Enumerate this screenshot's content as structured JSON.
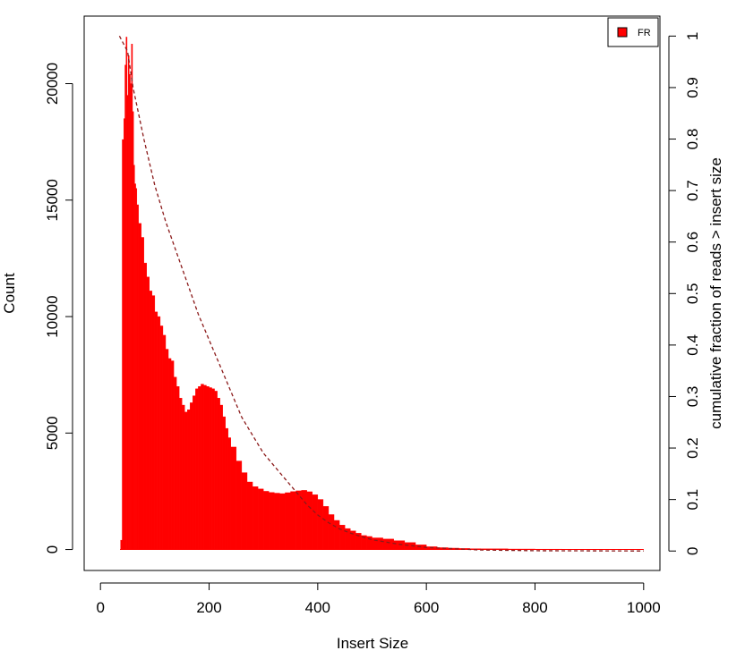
{
  "chart_data": {
    "type": "area",
    "xlabel": "Insert Size",
    "ylabel": "Count",
    "y2label": "cumulative fraction of reads > insert size",
    "xlim": [
      -30,
      1030
    ],
    "ylim": [
      -900,
      22900
    ],
    "y2lim": [
      -0.0378,
      1.0388
    ],
    "x_ticks": [
      0,
      200,
      400,
      600,
      800,
      1000
    ],
    "y_ticks": [
      0,
      5000,
      10000,
      15000,
      20000
    ],
    "y2_ticks": [
      0,
      0.1,
      0.2,
      0.3,
      0.4,
      0.5,
      0.6,
      0.7,
      0.8,
      0.9,
      1
    ],
    "legend": {
      "position": "top-right",
      "entries": [
        {
          "label": "FR",
          "color": "#ff0000"
        }
      ]
    },
    "series": [
      {
        "name": "FR",
        "kind": "histogram",
        "color": "#ff0000",
        "x": [
          36,
          37,
          40,
          43,
          45,
          47,
          49,
          51,
          53,
          55,
          57,
          59,
          61,
          63,
          65,
          67,
          70,
          75,
          80,
          85,
          90,
          95,
          100,
          105,
          110,
          115,
          120,
          125,
          130,
          135,
          140,
          145,
          150,
          155,
          160,
          165,
          170,
          175,
          180,
          185,
          190,
          195,
          200,
          205,
          210,
          215,
          220,
          225,
          230,
          235,
          240,
          250,
          260,
          270,
          280,
          290,
          300,
          310,
          320,
          330,
          340,
          350,
          360,
          370,
          380,
          390,
          400,
          410,
          420,
          430,
          440,
          450,
          460,
          470,
          480,
          490,
          500,
          520,
          540,
          560,
          580,
          600,
          620,
          640,
          660,
          680,
          700,
          750,
          800,
          850,
          900,
          950,
          1000
        ],
        "y": [
          0,
          400,
          17600,
          18500,
          20800,
          22000,
          19500,
          21200,
          20400,
          20000,
          21700,
          18800,
          16500,
          15700,
          15500,
          14800,
          14000,
          13400,
          12300,
          11700,
          11100,
          10900,
          10200,
          10000,
          9600,
          9200,
          8600,
          8200,
          8100,
          7400,
          7000,
          6500,
          6200,
          5900,
          6000,
          6300,
          6600,
          6900,
          7000,
          7100,
          7050,
          7000,
          6950,
          6900,
          6800,
          6500,
          6200,
          5700,
          5200,
          4800,
          4400,
          3800,
          3300,
          2900,
          2700,
          2600,
          2500,
          2450,
          2420,
          2400,
          2440,
          2490,
          2520,
          2540,
          2480,
          2350,
          2150,
          1850,
          1500,
          1250,
          1050,
          900,
          800,
          700,
          600,
          560,
          500,
          450,
          380,
          300,
          200,
          120,
          80,
          60,
          45,
          35,
          30,
          20,
          15,
          10,
          8,
          5,
          3
        ]
      },
      {
        "name": "cumulative fraction of reads > insert size",
        "kind": "cumulative",
        "axis": "right",
        "style": "dashed",
        "color": "#8b1a1a",
        "x": [
          35,
          50,
          60,
          80,
          100,
          120,
          140,
          160,
          180,
          200,
          220,
          240,
          260,
          280,
          300,
          320,
          340,
          360,
          380,
          400,
          420,
          440,
          460,
          480,
          500,
          550,
          600,
          700,
          800,
          1000
        ],
        "y": [
          1.0,
          0.97,
          0.9,
          0.8,
          0.71,
          0.64,
          0.58,
          0.52,
          0.46,
          0.41,
          0.36,
          0.31,
          0.26,
          0.225,
          0.19,
          0.165,
          0.14,
          0.115,
          0.09,
          0.07,
          0.055,
          0.043,
          0.035,
          0.028,
          0.022,
          0.013,
          0.007,
          0.002,
          0.0005,
          0.0
        ]
      }
    ]
  }
}
